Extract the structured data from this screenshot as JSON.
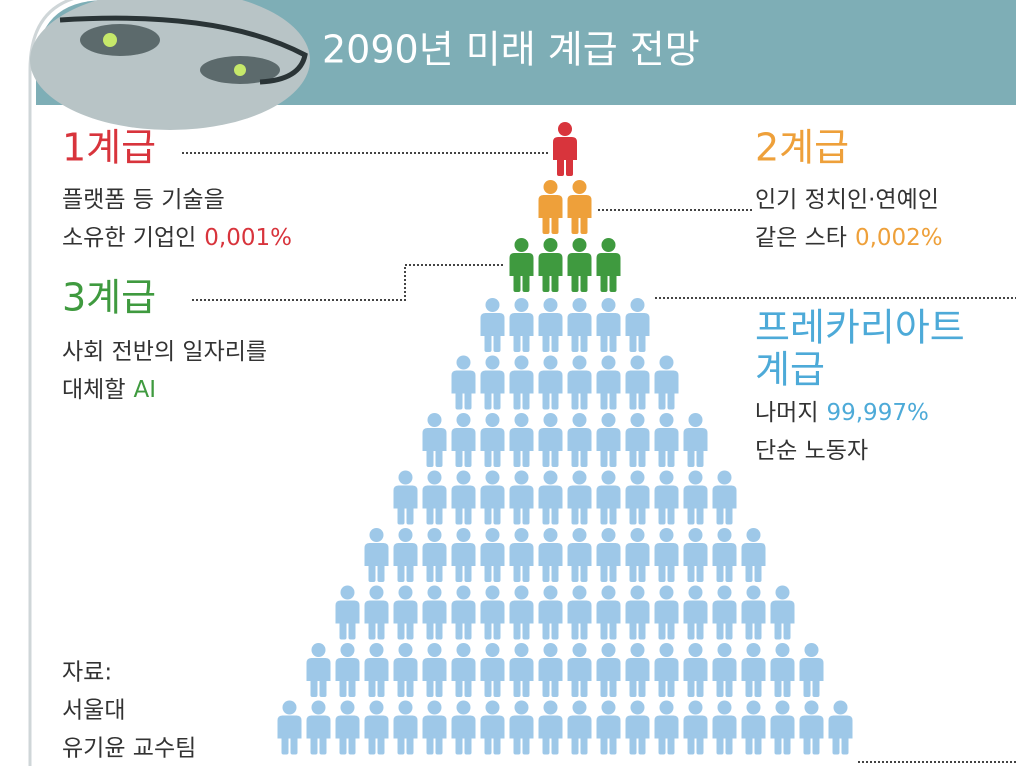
{
  "header": {
    "title": "2090년 미래 계급 전망"
  },
  "classes": [
    {
      "label": [
        "1계급"
      ],
      "color": "#d8343c",
      "lines": [
        {
          "text": "플랫폼 등 기술을"
        },
        {
          "text": "소유한 기업인",
          "highlight": "0,001%"
        }
      ]
    },
    {
      "label": [
        "2계급"
      ],
      "color": "#eea03a",
      "lines": [
        {
          "text": "인기 정치인·연예인"
        },
        {
          "text": "같은 스타",
          "highlight": "0,002%"
        }
      ]
    },
    {
      "label": [
        "3계급"
      ],
      "color": "#3f9a3f",
      "lines": [
        {
          "text": "사회 전반의 일자리를"
        },
        {
          "text": "대체할",
          "highlight": "AI"
        }
      ]
    },
    {
      "label": [
        "프레카리아트",
        "계급"
      ],
      "color": "#4daad8",
      "lines": [
        {
          "text": "나머지",
          "highlight": "99,997%"
        },
        {
          "text": "단순 노동자"
        }
      ]
    }
  ],
  "source": {
    "lines": [
      "자료:",
      "서울대",
      "유기윤 교수팀"
    ]
  }
}
